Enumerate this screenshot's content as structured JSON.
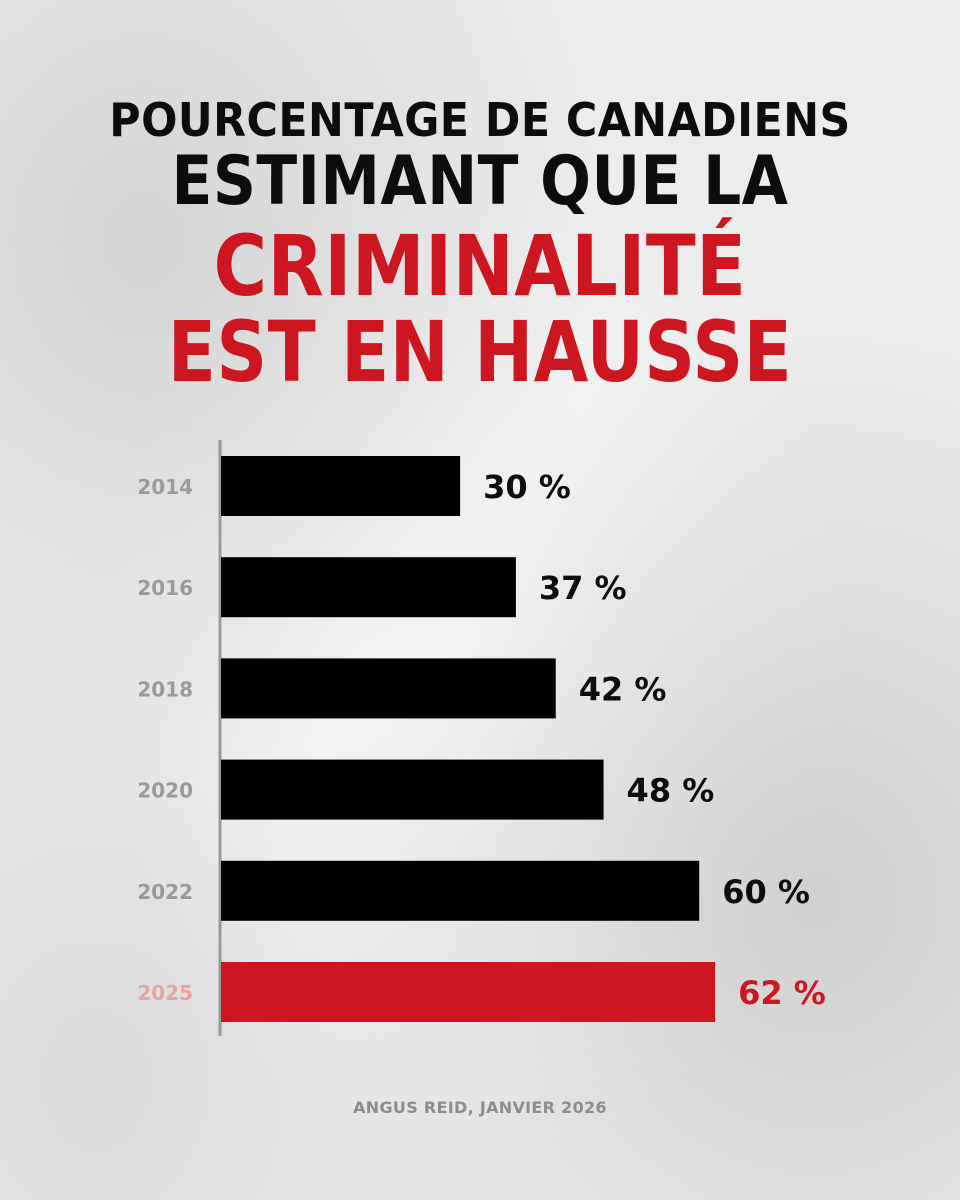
{
  "header": {
    "line1": "POURCENTAGE DE CANADIENS",
    "line2": "ESTIMANT QUE LA",
    "line3": "CRIMINALITÉ",
    "line4": "EST EN HAUSSE"
  },
  "source": "ANGUS REID, JANVIER 2026",
  "colors": {
    "title_black": "#0d0d0d",
    "accent_red": "#cc1721",
    "bar_black": "#000000",
    "year_gray": "#9a9a9a",
    "highlight_year": "#e8a3a7"
  },
  "chart_data": {
    "type": "bar",
    "orientation": "horizontal",
    "categories": [
      "2014",
      "2016",
      "2018",
      "2020",
      "2022",
      "2025"
    ],
    "values": [
      30,
      37,
      42,
      48,
      60,
      62
    ],
    "value_labels": [
      "30 %",
      "37 %",
      "42 %",
      "48 %",
      "60 %",
      "62 %"
    ],
    "highlight_index": 5,
    "xlim": [
      0,
      100
    ],
    "grid": false,
    "title": ""
  }
}
